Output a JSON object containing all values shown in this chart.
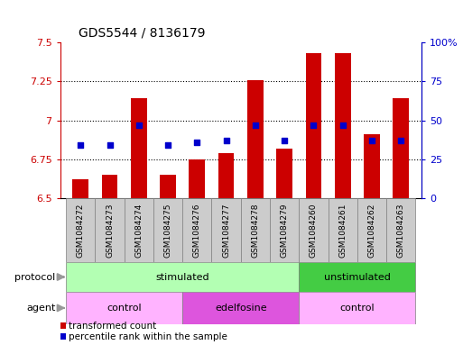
{
  "title": "GDS5544 / 8136179",
  "samples": [
    "GSM1084272",
    "GSM1084273",
    "GSM1084274",
    "GSM1084275",
    "GSM1084276",
    "GSM1084277",
    "GSM1084278",
    "GSM1084279",
    "GSM1084260",
    "GSM1084261",
    "GSM1084262",
    "GSM1084263"
  ],
  "bar_values": [
    6.62,
    6.65,
    7.14,
    6.65,
    6.75,
    6.79,
    7.26,
    6.82,
    7.43,
    7.43,
    6.91,
    7.14
  ],
  "percentile_pct": [
    34,
    34,
    47,
    34,
    36,
    37,
    47,
    37,
    47,
    47,
    37,
    37
  ],
  "bar_bottom": 6.5,
  "ylim_left": [
    6.5,
    7.5
  ],
  "ylim_right": [
    0,
    100
  ],
  "yticks_left": [
    6.5,
    6.75,
    7.0,
    7.25,
    7.5
  ],
  "ytick_labels_left": [
    "6.5",
    "6.75",
    "7",
    "7.25",
    "7.5"
  ],
  "yticks_right": [
    0,
    25,
    50,
    75,
    100
  ],
  "ytick_labels_right": [
    "0",
    "25",
    "50",
    "75",
    "100%"
  ],
  "bar_color": "#cc0000",
  "dot_color": "#0000cc",
  "bar_width": 0.55,
  "grid_yticks": [
    6.75,
    7.0,
    7.25
  ],
  "protocol_groups": [
    {
      "label": "stimulated",
      "start": 0,
      "end": 8,
      "color": "#b3ffb3"
    },
    {
      "label": "unstimulated",
      "start": 8,
      "end": 12,
      "color": "#44cc44"
    }
  ],
  "agent_groups": [
    {
      "label": "control",
      "start": 0,
      "end": 4,
      "color": "#ffb3ff"
    },
    {
      "label": "edelfosine",
      "start": 4,
      "end": 8,
      "color": "#dd55dd"
    },
    {
      "label": "control",
      "start": 8,
      "end": 12,
      "color": "#ffb3ff"
    }
  ],
  "left_axis_color": "#cc0000",
  "right_axis_color": "#0000cc",
  "label_gray": "#999999",
  "tick_gray": "#bbbbbb",
  "bg_color": "#ffffff",
  "sample_box_color": "#cccccc",
  "legend_red_label": "transformed count",
  "legend_blue_label": "percentile rank within the sample"
}
